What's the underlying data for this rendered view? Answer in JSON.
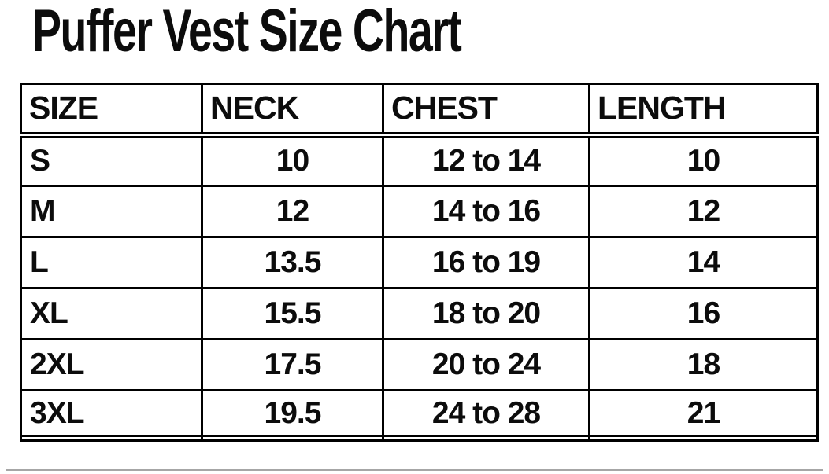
{
  "title": "Puffer Vest Size Chart",
  "colors": {
    "text": "#0c0c0c",
    "border": "#000000",
    "background": "#ffffff"
  },
  "chart_data": {
    "type": "table",
    "title": "Puffer Vest Size Chart",
    "columns": [
      "SIZE",
      "NECK",
      "CHEST",
      "LENGTH"
    ],
    "rows": [
      [
        "S",
        "10",
        "12 to 14",
        "10"
      ],
      [
        "M",
        "12",
        "14 to 16",
        "12"
      ],
      [
        "L",
        "13.5",
        "16 to 19",
        "14"
      ],
      [
        "XL",
        "15.5",
        "18 to 20",
        "16"
      ],
      [
        "2XL",
        "17.5",
        "20 to 24",
        "18"
      ],
      [
        "3XL",
        "19.5",
        "24 to 28",
        "21"
      ]
    ]
  }
}
